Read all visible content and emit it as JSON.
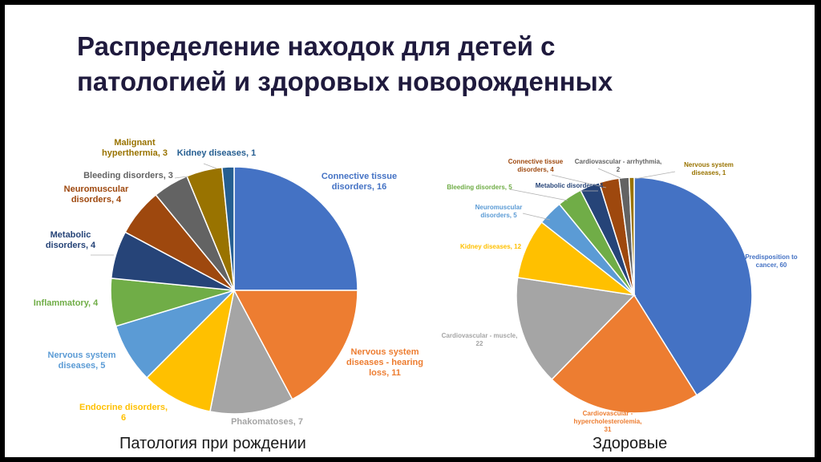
{
  "title_lines": [
    "Распределение находок для детей с",
    "патологией и здоровых новорожденных"
  ],
  "colors": {
    "blue": "#4472C4",
    "orange": "#ED7D31",
    "gray": "#A5A5A5",
    "yellow": "#FFC000",
    "lightblue": "#5B9BD5",
    "green": "#70AD47",
    "navy": "#264478",
    "rust": "#9E480E",
    "darkgray": "#636363",
    "olive": "#997300",
    "steel": "#255E91"
  },
  "chart_data": [
    {
      "type": "pie",
      "caption": "Патология при рождении",
      "slices": [
        {
          "label": "Connective tissue disorders",
          "value": 16,
          "color": "#4472C4"
        },
        {
          "label": "Nervous system diseases - hearing loss",
          "value": 11,
          "color": "#ED7D31"
        },
        {
          "label": "Phakomatoses",
          "value": 7,
          "color": "#A5A5A5"
        },
        {
          "label": "Endocrine disorders",
          "value": 6,
          "color": "#FFC000"
        },
        {
          "label": "Nervous system diseases",
          "value": 5,
          "color": "#5B9BD5"
        },
        {
          "label": "Inflammatory",
          "value": 4,
          "color": "#70AD47"
        },
        {
          "label": "Metabolic disorders",
          "value": 4,
          "color": "#264478"
        },
        {
          "label": "Neuromuscular disorders",
          "value": 4,
          "color": "#9E480E"
        },
        {
          "label": "Bleeding disorders",
          "value": 3,
          "color": "#636363"
        },
        {
          "label": "Malignant hyperthermia",
          "value": 3,
          "color": "#997300"
        },
        {
          "label": "Kidney diseases",
          "value": 1,
          "color": "#255E91"
        }
      ],
      "data_labels": [
        [
          "Connective tissue",
          "disorders, 16"
        ],
        [
          "Nervous system",
          "diseases - hearing",
          "loss, 11"
        ],
        [
          "Phakomatoses, 7"
        ],
        [
          "Endocrine disorders,",
          "6"
        ],
        [
          "Nervous system",
          "diseases, 5"
        ],
        [
          "Inflammatory, 4"
        ],
        [
          "Metabolic",
          "disorders, 4"
        ],
        [
          "Neuromuscular",
          "disorders, 4"
        ],
        [
          "Bleeding disorders, 3"
        ],
        [
          "Malignant",
          "hyperthermia, 3"
        ],
        [
          "Kidney diseases, 1"
        ]
      ]
    },
    {
      "type": "pie",
      "caption": "Здоровые",
      "slices": [
        {
          "label": "Predisposition to cancer",
          "value": 60,
          "color": "#4472C4"
        },
        {
          "label": "Cardiovascular - hypercholesterolemia",
          "value": 31,
          "color": "#ED7D31"
        },
        {
          "label": "Cardiovascular - muscle",
          "value": 22,
          "color": "#A5A5A5"
        },
        {
          "label": "Kidney diseases",
          "value": 12,
          "color": "#FFC000"
        },
        {
          "label": "Neuromuscular disorders",
          "value": 5,
          "color": "#5B9BD5"
        },
        {
          "label": "Bleeding disorders",
          "value": 5,
          "color": "#70AD47"
        },
        {
          "label": "Metabolic disorders",
          "value": 4,
          "color": "#264478"
        },
        {
          "label": "Connective tissue disorders",
          "value": 4,
          "color": "#9E480E"
        },
        {
          "label": "Cardiovascular - arrhythmia",
          "value": 2,
          "color": "#636363"
        },
        {
          "label": "Nervous system diseases",
          "value": 1,
          "color": "#997300"
        }
      ],
      "data_labels": [
        [
          "Predisposition to",
          "cancer, 60"
        ],
        [
          "Cardiovascular -",
          "hypercholesterolemia,",
          "31"
        ],
        [
          "Cardiovascular - muscle,",
          "22"
        ],
        [
          "Kidney diseases, 12"
        ],
        [
          "Neuromuscular",
          "disorders, 5"
        ],
        [
          "Bleeding disorders, 5"
        ],
        [
          "Metabolic disorders, 4"
        ],
        [
          "Connective tissue",
          "disorders, 4"
        ],
        [
          "Cardiovascular - arrhythmia,",
          "2"
        ],
        [
          "Nervous system",
          "diseases, 1"
        ]
      ]
    }
  ]
}
